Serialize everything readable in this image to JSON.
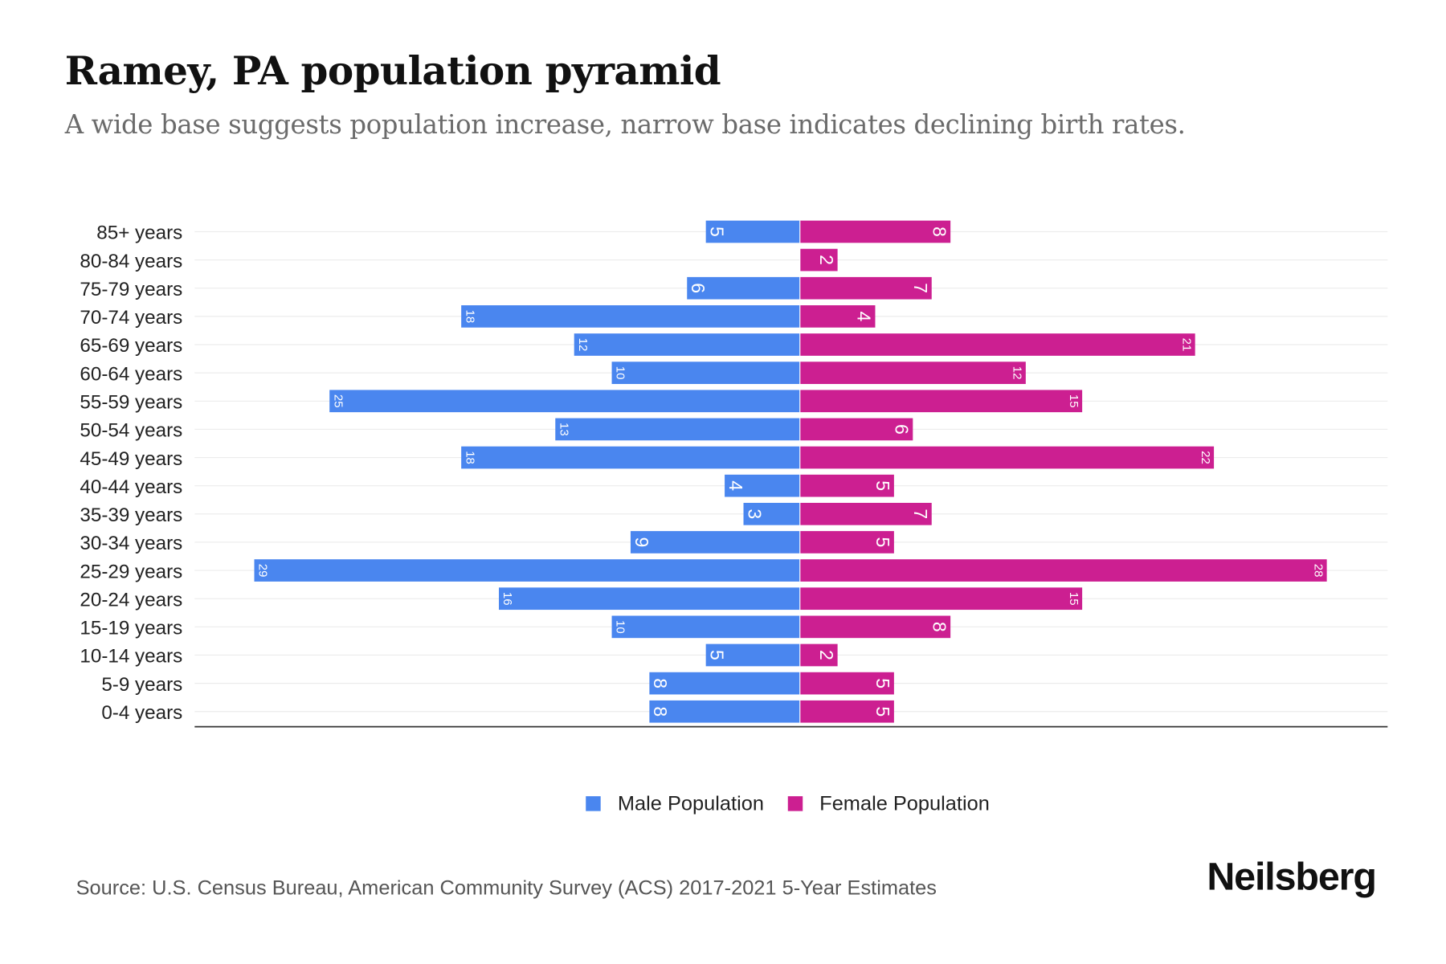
{
  "title": "Ramey, PA population pyramid",
  "subtitle": "A wide base suggests population increase, narrow base indicates declining birth rates.",
  "source": "Source: U.S. Census Bureau, American Community Survey (ACS) 2017-2021 5-Year Estimates",
  "logo": "Neilsberg",
  "colors": {
    "male": "#4a86ef",
    "female": "#cc1f91"
  },
  "chart_data": {
    "type": "bar",
    "orientation": "horizontal-diverging",
    "title": "Ramey, PA population pyramid",
    "categories": [
      "85+ years",
      "80-84 years",
      "75-79 years",
      "70-74 years",
      "65-69 years",
      "60-64 years",
      "55-59 years",
      "50-54 years",
      "45-49 years",
      "40-44 years",
      "35-39 years",
      "30-34 years",
      "25-29 years",
      "20-24 years",
      "15-19 years",
      "10-14 years",
      "5-9 years",
      "0-4 years"
    ],
    "series": [
      {
        "name": "Male Population",
        "values": [
          5,
          0,
          6,
          18,
          12,
          10,
          25,
          13,
          18,
          4,
          3,
          9,
          29,
          16,
          10,
          5,
          8,
          8
        ]
      },
      {
        "name": "Female Population",
        "values": [
          8,
          2,
          7,
          4,
          21,
          12,
          15,
          6,
          22,
          5,
          7,
          5,
          28,
          15,
          8,
          2,
          5,
          5
        ]
      }
    ],
    "xlim": [
      -32,
      31.5
    ],
    "grid": true,
    "legend": "bottom-center"
  }
}
